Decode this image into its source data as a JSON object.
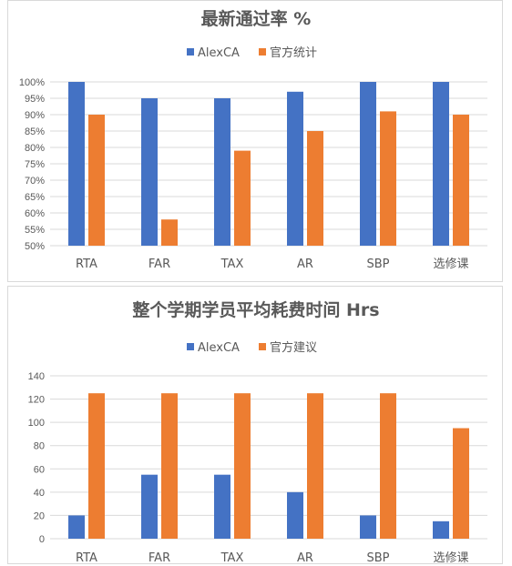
{
  "colors": {
    "alexca": "#4472C4",
    "official": "#ED7D31"
  },
  "chart_data": [
    {
      "type": "bar",
      "title": "最新通过率 %",
      "categories": [
        "RTA",
        "FAR",
        "TAX",
        "AR",
        "SBP",
        "选修课"
      ],
      "series": [
        {
          "name": "AlexCA",
          "values": [
            100,
            95,
            95,
            97,
            100,
            100
          ]
        },
        {
          "name": "官方统计",
          "values": [
            90,
            58,
            79,
            85,
            91,
            90
          ]
        }
      ],
      "ylim": [
        50,
        100
      ],
      "yticks": [
        "50%",
        "55%",
        "60%",
        "65%",
        "70%",
        "75%",
        "80%",
        "85%",
        "90%",
        "95%",
        "100%"
      ],
      "legend": "top",
      "grid": true
    },
    {
      "type": "bar",
      "title": "整个学期学员平均耗费时间 Hrs",
      "categories": [
        "RTA",
        "FAR",
        "TAX",
        "AR",
        "SBP",
        "选修课"
      ],
      "series": [
        {
          "name": "AlexCA",
          "values": [
            20,
            55,
            55,
            40,
            20,
            15
          ]
        },
        {
          "name": "官方建议",
          "values": [
            125,
            125,
            125,
            125,
            125,
            95
          ]
        }
      ],
      "ylim": [
        0,
        140
      ],
      "yticks": [
        "0",
        "20",
        "40",
        "60",
        "80",
        "100",
        "120",
        "140"
      ],
      "legend": "top",
      "grid": true
    }
  ]
}
